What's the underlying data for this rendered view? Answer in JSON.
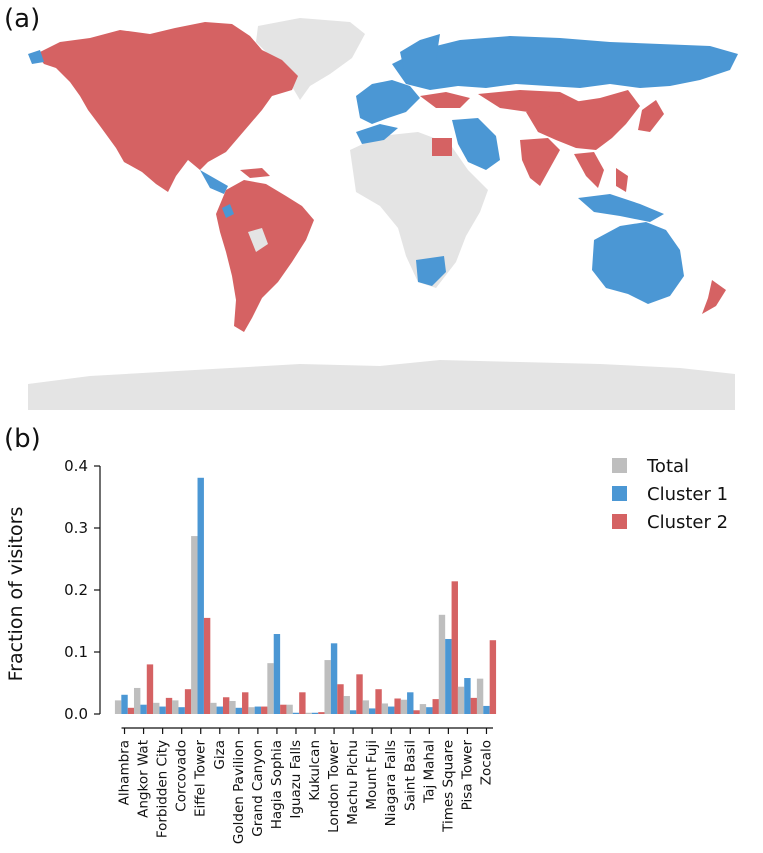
{
  "panels": {
    "a": "(a)",
    "b": "(b)"
  },
  "map": {
    "colors": {
      "cluster1": "#4b97d4",
      "cluster2": "#d56263",
      "nodata": "#e4e4e4"
    }
  },
  "chart_data": {
    "type": "bar",
    "title": "",
    "xlabel": "",
    "ylabel": "Fraction of visitors",
    "ylim": [
      0,
      0.4
    ],
    "yticks": [
      "0.0",
      "0.1",
      "0.2",
      "0.3",
      "0.4"
    ],
    "legend_position": "top-right",
    "grid": false,
    "categories": [
      "Alhambra",
      "Angkor Wat",
      "Forbidden City",
      "Corcovado",
      "Eiffel Tower",
      "Giza",
      "Golden Pavilion",
      "Grand Canyon",
      "Hagia Sophia",
      "Iguazu Falls",
      "Kukulcan",
      "London Tower",
      "Machu Pichu",
      "Mount Fuji",
      "Niagara Falls",
      "Saint Basil",
      "Taj Mahal",
      "Times Square",
      "Pisa Tower",
      "Zocalo"
    ],
    "series": [
      {
        "name": "Total",
        "color": "#bebebe",
        "values": [
          0.022,
          0.042,
          0.018,
          0.022,
          0.287,
          0.018,
          0.021,
          0.011,
          0.082,
          0.015,
          0.002,
          0.087,
          0.029,
          0.022,
          0.017,
          0.023,
          0.016,
          0.16,
          0.044,
          0.057
        ]
      },
      {
        "name": "Cluster 1",
        "color": "#4b97d4",
        "values": [
          0.031,
          0.015,
          0.012,
          0.011,
          0.381,
          0.012,
          0.01,
          0.012,
          0.129,
          0.002,
          0.002,
          0.114,
          0.006,
          0.009,
          0.012,
          0.035,
          0.011,
          0.121,
          0.058,
          0.013
        ]
      },
      {
        "name": "Cluster 2",
        "color": "#d56263",
        "values": [
          0.01,
          0.08,
          0.026,
          0.04,
          0.155,
          0.027,
          0.035,
          0.012,
          0.015,
          0.035,
          0.003,
          0.048,
          0.064,
          0.04,
          0.025,
          0.006,
          0.024,
          0.214,
          0.026,
          0.119
        ]
      }
    ]
  }
}
